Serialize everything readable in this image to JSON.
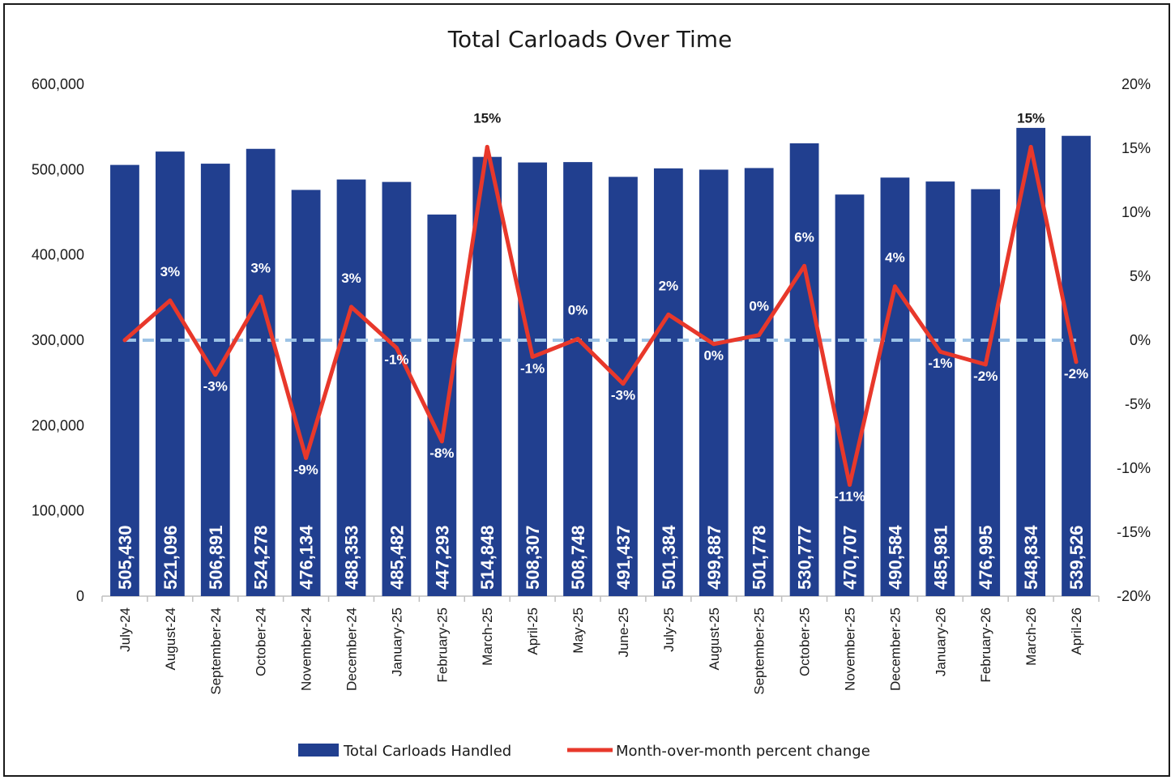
{
  "chart_data": {
    "type": "bar+line",
    "title": "Total Carloads Over Time",
    "categories": [
      "July-24",
      "August-24",
      "September-24",
      "October-24",
      "November-24",
      "December-24",
      "January-25",
      "February-25",
      "March-25",
      "April-25",
      "May-25",
      "June-25",
      "July-25",
      "August-25",
      "September-25",
      "October-25",
      "November-25",
      "December-25",
      "January-26",
      "February-26",
      "March-26",
      "April-26"
    ],
    "series": [
      {
        "name": "Total Carloads Handled",
        "type": "bar",
        "axis": "left",
        "color": "#213f8f",
        "values": [
          505430,
          521096,
          506891,
          524278,
          476134,
          488353,
          485482,
          447293,
          514848,
          508307,
          508748,
          491437,
          501384,
          499887,
          501778,
          530777,
          470707,
          490584,
          485981,
          476995,
          548834,
          539526
        ],
        "labels": [
          "505,430",
          "521,096",
          "506,891",
          "524,278",
          "476,134",
          "488,353",
          "485,482",
          "447,293",
          "514,848",
          "508,307",
          "508,748",
          "491,437",
          "501,384",
          "499,887",
          "501,778",
          "530,777",
          "470,707",
          "490,584",
          "485,981",
          "476,995",
          "548,834",
          "539,526"
        ]
      },
      {
        "name": "Month-over-month percent change",
        "type": "line",
        "axis": "right",
        "color": "#e8382b",
        "values": [
          0.0,
          3.1,
          -2.7,
          3.4,
          -9.2,
          2.6,
          -0.6,
          -7.9,
          15.1,
          -1.3,
          0.1,
          -3.4,
          2.0,
          -0.3,
          0.4,
          5.8,
          -11.3,
          4.2,
          -0.9,
          -1.9,
          15.1,
          -1.7
        ],
        "labels": [
          "",
          "3%",
          "-3%",
          "3%",
          "-9%",
          "3%",
          "-1%",
          "-8%",
          "15%",
          "-1%",
          "0%",
          "-3%",
          "2%",
          "0%",
          "0%",
          "6%",
          "-11%",
          "4%",
          "-1%",
          "-2%",
          "15%",
          "-2%"
        ]
      }
    ],
    "y_left": {
      "min": 0,
      "max": 600000,
      "ticks": [
        "0",
        "100,000",
        "200,000",
        "300,000",
        "400,000",
        "500,000",
        "600,000"
      ]
    },
    "y_right": {
      "min": -20,
      "max": 20,
      "ticks": [
        "-20%",
        "-15%",
        "-10%",
        "-5%",
        "0%",
        "5%",
        "10%",
        "15%",
        "20%"
      ]
    },
    "reference_line": {
      "value": 0,
      "axis": "right",
      "color": "#9dc3e6",
      "style": "dashed"
    },
    "legend": {
      "position": "bottom"
    },
    "grid": false
  }
}
